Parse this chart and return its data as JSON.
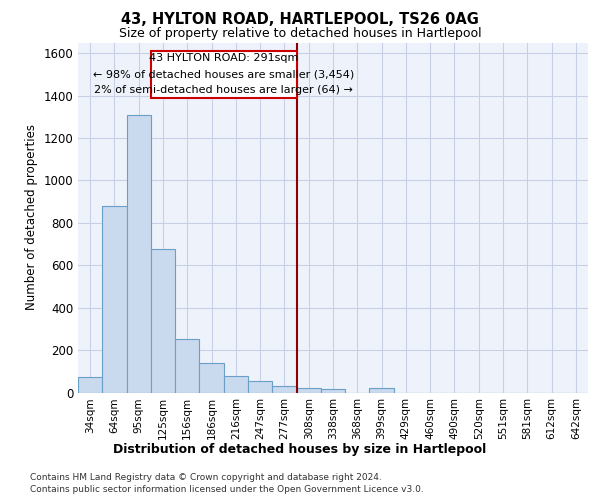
{
  "title": "43, HYLTON ROAD, HARTLEPOOL, TS26 0AG",
  "subtitle": "Size of property relative to detached houses in Hartlepool",
  "xlabel": "Distribution of detached houses by size in Hartlepool",
  "ylabel": "Number of detached properties",
  "bin_labels": [
    "34sqm",
    "64sqm",
    "95sqm",
    "125sqm",
    "156sqm",
    "186sqm",
    "216sqm",
    "247sqm",
    "277sqm",
    "308sqm",
    "338sqm",
    "368sqm",
    "399sqm",
    "429sqm",
    "460sqm",
    "490sqm",
    "520sqm",
    "551sqm",
    "581sqm",
    "612sqm",
    "642sqm"
  ],
  "bar_values": [
    75,
    880,
    1310,
    675,
    250,
    140,
    80,
    55,
    30,
    20,
    15,
    0,
    20,
    0,
    0,
    0,
    0,
    0,
    0,
    0,
    0
  ],
  "bar_color": "#c9d9ee",
  "bar_edge_color": "#6aa0c7",
  "property_value": 291,
  "property_label": "43 HYLTON ROAD: 291sqm",
  "smaller_pct": 98,
  "smaller_count": 3454,
  "larger_pct": 2,
  "larger_count": 64,
  "vline_color": "#8b0000",
  "annotation_box_color": "#cc0000",
  "background_color": "#eef2fb",
  "grid_color": "#c8d0e8",
  "fig_bg_color": "#ffffff",
  "ylim": [
    0,
    1650
  ],
  "yticks": [
    0,
    200,
    400,
    600,
    800,
    1000,
    1200,
    1400,
    1600
  ],
  "footnote1": "Contains HM Land Registry data © Crown copyright and database right 2024.",
  "footnote2": "Contains public sector information licensed under the Open Government Licence v3.0."
}
